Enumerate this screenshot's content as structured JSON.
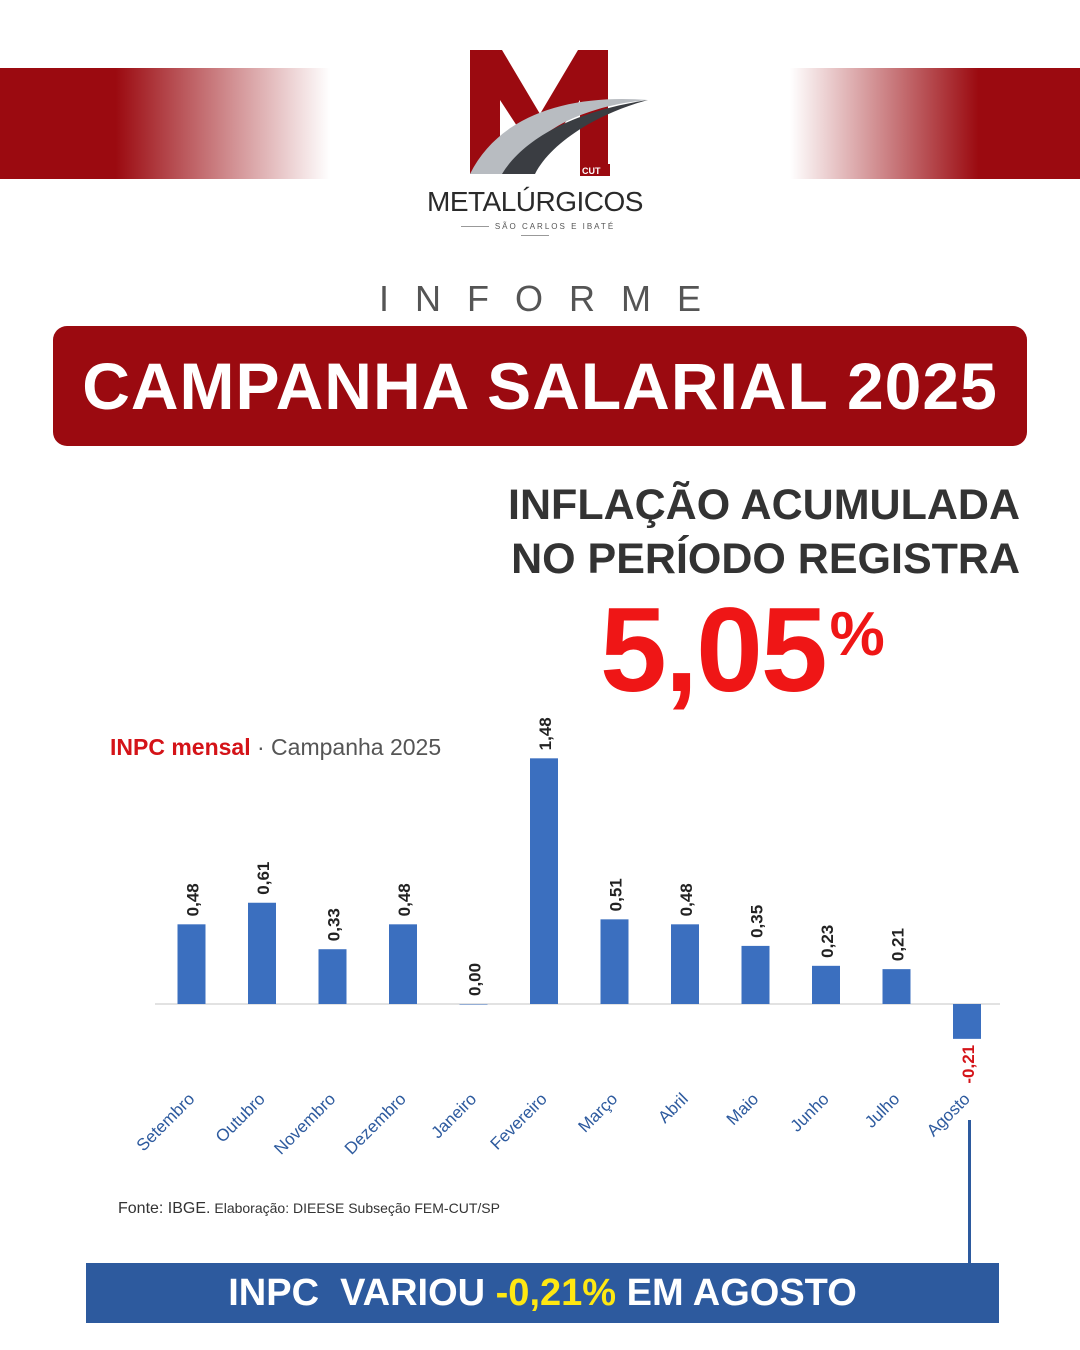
{
  "logo": {
    "mark_letter": "M",
    "mark_tag": "CUT",
    "name": "METALÚRGICOS",
    "subtitle": "SÃO CARLOS E IBATÉ"
  },
  "header": {
    "kicker": "INFORME",
    "banner": "CAMPANHA SALARIAL 2025"
  },
  "headline": {
    "line1": "INFLAÇÃO ACUMULADA",
    "line2": "NO PERÍODO REGISTRA",
    "value": "5,05",
    "unit": "%"
  },
  "chart_title": {
    "accent": "INPC mensal",
    "rest": " · Campanha 2025"
  },
  "chart_data": {
    "type": "bar",
    "categories": [
      "Setembro",
      "Outubro",
      "Novembro",
      "Dezembro",
      "Janeiro",
      "Fevereiro",
      "Março",
      "Abril",
      "Maio",
      "Junho",
      "Julho",
      "Agosto"
    ],
    "values": [
      0.48,
      0.61,
      0.33,
      0.48,
      0.0,
      1.48,
      0.51,
      0.48,
      0.35,
      0.23,
      0.21,
      -0.21
    ],
    "labels": [
      "0,48",
      "0,61",
      "0,33",
      "0,48",
      "0,00",
      "1,48",
      "0,51",
      "0,48",
      "0,35",
      "0,23",
      "0,21",
      "-0,21"
    ],
    "title": "INPC mensal · Campanha 2025",
    "xlabel": "",
    "ylabel": "",
    "grid": false,
    "legend": "none",
    "bar_color": "#3b6fbf",
    "negative_label_color": "#d41318"
  },
  "source": {
    "main": "Fonte: IBGE.",
    "detail": " Elaboração: DIEESE Subseção FEM-CUT/SP"
  },
  "footer": {
    "before": "INPC  VARIOU ",
    "highlight": "-0,21%",
    "after": " EM AGOSTO"
  },
  "colors": {
    "brand_red": "#9b0a10",
    "accent_red": "#ef1616",
    "footer_blue": "#2d5a9e",
    "highlight_yellow": "#ffe812"
  }
}
